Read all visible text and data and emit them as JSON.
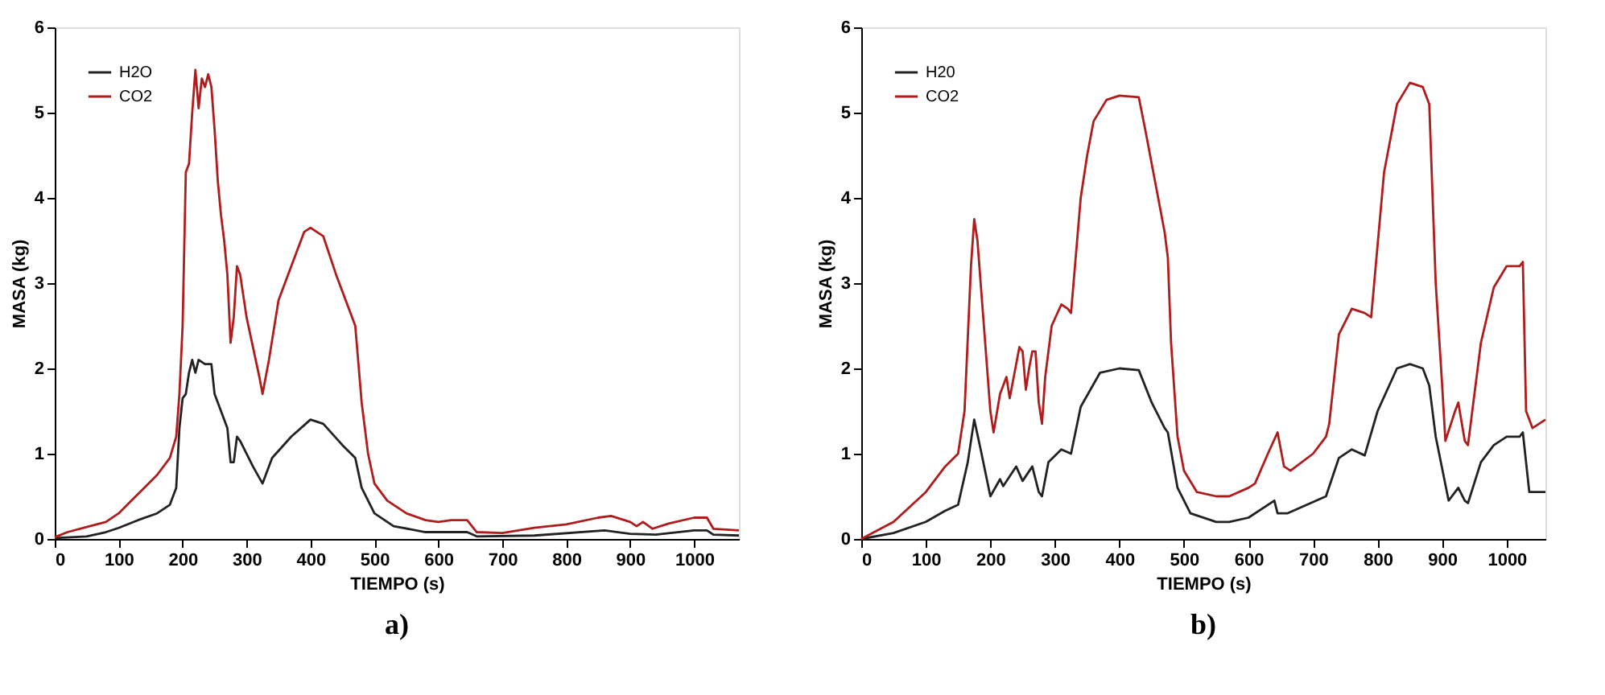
{
  "chart_data": [
    {
      "type": "line",
      "title": "a)",
      "xlabel": "TIEMPO (s)",
      "ylabel": "MASA (kg)",
      "xlim": [
        0,
        1070
      ],
      "ylim": [
        0,
        6
      ],
      "xticks": [
        0,
        100,
        200,
        300,
        400,
        500,
        600,
        700,
        800,
        900,
        1000
      ],
      "yticks": [
        0,
        1,
        2,
        3,
        4,
        5,
        6
      ],
      "grid": false,
      "legend": "top left",
      "marker": "none",
      "line_style": "solid",
      "series": [
        {
          "name": "H2O",
          "color": "#222222",
          "x": [
            0,
            50,
            80,
            100,
            130,
            160,
            180,
            190,
            195,
            200,
            205,
            210,
            215,
            220,
            225,
            235,
            245,
            250,
            260,
            270,
            275,
            280,
            285,
            290,
            310,
            325,
            340,
            370,
            400,
            420,
            450,
            470,
            480,
            500,
            530,
            580,
            645,
            660,
            750,
            860,
            900,
            940,
            1000,
            1020,
            1030,
            1070
          ],
          "values": [
            0.01,
            0.03,
            0.08,
            0.13,
            0.22,
            0.3,
            0.4,
            0.6,
            1.3,
            1.65,
            1.7,
            1.95,
            2.1,
            1.95,
            2.1,
            2.05,
            2.05,
            1.7,
            1.5,
            1.3,
            0.9,
            0.9,
            1.2,
            1.15,
            0.85,
            0.65,
            0.95,
            1.2,
            1.4,
            1.35,
            1.1,
            0.95,
            0.6,
            0.3,
            0.15,
            0.08,
            0.08,
            0.03,
            0.04,
            0.1,
            0.06,
            0.05,
            0.1,
            0.1,
            0.05,
            0.04
          ]
        },
        {
          "name": "CO2",
          "color": "#b01c1c",
          "x": [
            0,
            20,
            50,
            80,
            100,
            120,
            140,
            160,
            180,
            190,
            195,
            200,
            205,
            210,
            215,
            220,
            225,
            230,
            235,
            240,
            245,
            250,
            255,
            260,
            265,
            270,
            275,
            280,
            285,
            290,
            300,
            320,
            325,
            335,
            350,
            370,
            390,
            400,
            420,
            440,
            460,
            470,
            480,
            490,
            500,
            520,
            550,
            580,
            600,
            620,
            645,
            660,
            700,
            750,
            800,
            850,
            870,
            900,
            910,
            920,
            935,
            960,
            1000,
            1020,
            1030,
            1070
          ],
          "values": [
            0.02,
            0.08,
            0.14,
            0.2,
            0.3,
            0.45,
            0.6,
            0.75,
            0.95,
            1.2,
            1.7,
            2.5,
            4.3,
            4.4,
            5.0,
            5.5,
            5.05,
            5.4,
            5.3,
            5.45,
            5.3,
            4.8,
            4.2,
            3.8,
            3.5,
            3.1,
            2.3,
            2.6,
            3.2,
            3.1,
            2.6,
            1.9,
            1.7,
            2.1,
            2.8,
            3.2,
            3.6,
            3.65,
            3.55,
            3.1,
            2.7,
            2.5,
            1.6,
            1.0,
            0.65,
            0.45,
            0.3,
            0.22,
            0.2,
            0.22,
            0.22,
            0.08,
            0.07,
            0.13,
            0.17,
            0.25,
            0.27,
            0.2,
            0.15,
            0.2,
            0.12,
            0.18,
            0.25,
            0.25,
            0.12,
            0.1
          ]
        }
      ]
    },
    {
      "type": "line",
      "title": "b)",
      "xlabel": "TIEMPO (s)",
      "ylabel": "MASA (kg)",
      "xlim": [
        0,
        1060
      ],
      "ylim": [
        0,
        6
      ],
      "xticks": [
        0,
        100,
        200,
        300,
        400,
        500,
        600,
        700,
        800,
        900,
        1000
      ],
      "yticks": [
        0,
        1,
        2,
        3,
        4,
        5,
        6
      ],
      "grid": false,
      "legend": "top left",
      "marker": "none",
      "line_style": "solid",
      "series": [
        {
          "name": "H20",
          "color": "#222222",
          "x": [
            0,
            50,
            100,
            130,
            150,
            165,
            175,
            185,
            200,
            215,
            220,
            240,
            250,
            265,
            275,
            280,
            290,
            310,
            325,
            340,
            370,
            400,
            430,
            450,
            470,
            475,
            490,
            510,
            550,
            570,
            600,
            640,
            645,
            660,
            720,
            740,
            760,
            780,
            800,
            830,
            850,
            870,
            880,
            890,
            910,
            925,
            935,
            940,
            960,
            980,
            1000,
            1020,
            1025,
            1035,
            1060
          ],
          "values": [
            0,
            0.07,
            0.2,
            0.33,
            0.4,
            0.9,
            1.4,
            1.05,
            0.5,
            0.7,
            0.62,
            0.85,
            0.68,
            0.85,
            0.55,
            0.5,
            0.9,
            1.05,
            1.0,
            1.55,
            1.95,
            2.0,
            1.98,
            1.6,
            1.3,
            1.25,
            0.6,
            0.3,
            0.2,
            0.2,
            0.25,
            0.45,
            0.3,
            0.3,
            0.5,
            0.95,
            1.05,
            0.98,
            1.5,
            2.0,
            2.05,
            2.0,
            1.8,
            1.2,
            0.45,
            0.6,
            0.45,
            0.42,
            0.9,
            1.1,
            1.2,
            1.2,
            1.25,
            0.55,
            0.55
          ]
        },
        {
          "name": "CO2",
          "color": "#b01c1c",
          "x": [
            0,
            50,
            100,
            130,
            150,
            160,
            170,
            175,
            180,
            190,
            200,
            205,
            215,
            225,
            230,
            245,
            250,
            255,
            260,
            265,
            270,
            275,
            280,
            285,
            295,
            310,
            320,
            325,
            340,
            350,
            360,
            380,
            400,
            430,
            440,
            460,
            470,
            475,
            480,
            490,
            500,
            520,
            550,
            570,
            600,
            610,
            630,
            645,
            655,
            665,
            700,
            720,
            725,
            740,
            760,
            780,
            790,
            810,
            830,
            850,
            870,
            880,
            890,
            900,
            905,
            920,
            925,
            935,
            940,
            960,
            980,
            1000,
            1020,
            1025,
            1030,
            1040,
            1060
          ],
          "values": [
            0.0,
            0.2,
            0.55,
            0.85,
            1.0,
            1.5,
            3.2,
            3.75,
            3.5,
            2.5,
            1.5,
            1.25,
            1.7,
            1.9,
            1.65,
            2.25,
            2.2,
            1.75,
            2.0,
            2.2,
            2.2,
            1.6,
            1.35,
            1.9,
            2.5,
            2.75,
            2.7,
            2.65,
            4.0,
            4.5,
            4.9,
            5.15,
            5.2,
            5.18,
            4.8,
            4.0,
            3.6,
            3.3,
            2.3,
            1.2,
            0.8,
            0.55,
            0.5,
            0.5,
            0.6,
            0.65,
            1.0,
            1.25,
            0.85,
            0.8,
            1.0,
            1.2,
            1.35,
            2.4,
            2.7,
            2.65,
            2.6,
            4.3,
            5.1,
            5.35,
            5.3,
            5.1,
            3.0,
            1.8,
            1.15,
            1.5,
            1.6,
            1.15,
            1.1,
            2.3,
            2.95,
            3.2,
            3.2,
            3.25,
            1.5,
            1.3,
            1.4
          ]
        }
      ]
    }
  ]
}
